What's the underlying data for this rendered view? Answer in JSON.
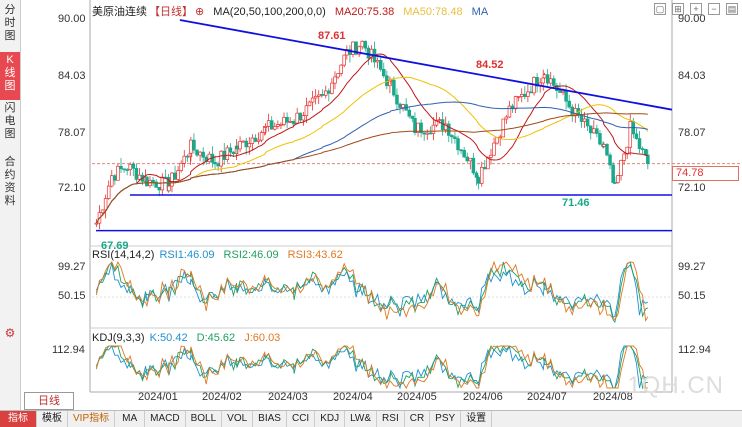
{
  "sidebar": {
    "tabs": [
      {
        "label": "分\n时\n图"
      },
      {
        "label": "K\n线\n图"
      },
      {
        "label": "闪\n电\n图"
      },
      {
        "label": "合\n约\n资\n料"
      }
    ]
  },
  "main_legend": {
    "title": "美原油连续",
    "period": "【日线】",
    "ma_params": "MA(20,50,100,200,0,0)",
    "ma20": "MA20:75.38",
    "ma50": "MA50:78.48",
    "ma_label": "MA"
  },
  "main_axis": {
    "labels": [
      "90.00",
      "84.03",
      "78.07",
      "72.10"
    ],
    "current_price": "74.78",
    "high_label": "87.61",
    "high2_label": "84.52",
    "low_label": "71.46",
    "low2_label": "67.69"
  },
  "rsi": {
    "params": "RSI(14,14,2)",
    "rsi1": "RSI1:46.09",
    "rsi2": "RSI2:46.09",
    "rsi3": "RSI3:43.62",
    "axis": [
      "99.27",
      "50.15"
    ]
  },
  "kdj": {
    "params": "KDJ(9,3,3)",
    "k": "K:50.42",
    "d": "D:45.62",
    "j": "J:60.03",
    "axis": [
      "112.94"
    ]
  },
  "x_axis": [
    "2024/01",
    "2024/02",
    "2024/03",
    "2024/04",
    "2024/05",
    "2024/06",
    "2024/07",
    "2024/08"
  ],
  "period_button": "日线",
  "bottom_tabs": [
    "指标",
    "模板",
    "VIP指标",
    "MA",
    "MACD",
    "BOLL",
    "VOL",
    "BIAS",
    "CCI",
    "KDJ",
    "LW&",
    "RSI",
    "CR",
    "PSY",
    "设置"
  ],
  "watermark": "1QH.CN",
  "colors": {
    "up": "#e8302e",
    "down": "#1aa88a",
    "ma20": "#c01818",
    "ma50": "#f0c000",
    "ma100": "#3060b0",
    "ma200": "#a04a1a",
    "trend": "#1010e0",
    "rsi1": "#2090d0",
    "rsi2": "#20a060",
    "rsi3": "#e07820"
  },
  "chart_data": {
    "type": "candlestick",
    "title": "美原油连续 日线",
    "x_range": [
      "2023/12",
      "2024/08"
    ],
    "ylim": [
      66,
      92
    ],
    "close_series_approx": [
      {
        "x": "2023/12/13",
        "y": 68.5
      },
      {
        "x": "2023/12/20",
        "y": 73.5
      },
      {
        "x": "2023/12/27",
        "y": 74.5
      },
      {
        "x": "2024/01/05",
        "y": 73.0
      },
      {
        "x": "2024/01/15",
        "y": 72.5
      },
      {
        "x": "2024/01/25",
        "y": 76.5
      },
      {
        "x": "2024/02/05",
        "y": 75.0
      },
      {
        "x": "2024/02/15",
        "y": 76.5
      },
      {
        "x": "2024/02/28",
        "y": 78.5
      },
      {
        "x": "2024/03/12",
        "y": 79.5
      },
      {
        "x": "2024/03/25",
        "y": 81.8
      },
      {
        "x": "2024/04/05",
        "y": 86.5
      },
      {
        "x": "2024/04/12",
        "y": 87.61
      },
      {
        "x": "2024/04/25",
        "y": 83.0
      },
      {
        "x": "2024/05/06",
        "y": 78.5
      },
      {
        "x": "2024/05/20",
        "y": 79.0
      },
      {
        "x": "2024/06/04",
        "y": 73.5
      },
      {
        "x": "2024/06/18",
        "y": 80.5
      },
      {
        "x": "2024/07/04",
        "y": 84.52
      },
      {
        "x": "2024/07/18",
        "y": 80.0
      },
      {
        "x": "2024/07/31",
        "y": 76.5
      },
      {
        "x": "2024/08/05",
        "y": 72.0
      },
      {
        "x": "2024/08/12",
        "y": 78.5
      },
      {
        "x": "2024/08/20",
        "y": 74.78
      }
    ],
    "annotations": {
      "high": 87.61,
      "second_high": 84.52,
      "low": 71.46,
      "first_low": 67.69,
      "last": 74.78
    },
    "horizontal_lines": [
      71.46,
      67.69
    ],
    "trendline": [
      {
        "x": "2024/01/20",
        "y": 90.0
      },
      {
        "x": "2024/08/31",
        "y": 80.5
      }
    ]
  }
}
